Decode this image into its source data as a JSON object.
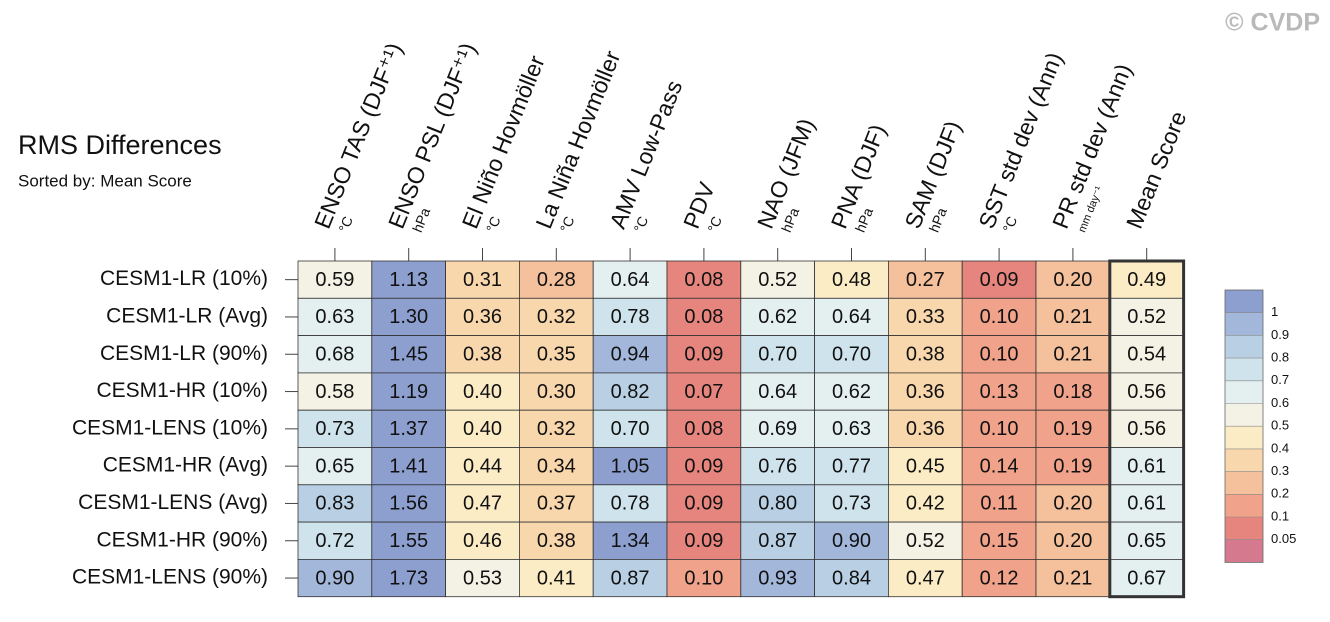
{
  "chart_data": {
    "type": "heatmap",
    "title": "RMS Differences",
    "subtitle": "Sorted by: Mean Score",
    "watermark": "© CVDP",
    "columns": [
      {
        "name": "ENSO TAS (DJF⁺¹)",
        "unit": "°C"
      },
      {
        "name": "ENSO PSL (DJF⁺¹)",
        "unit": "hPa"
      },
      {
        "name": "El Niño Hovmöller",
        "unit": "°C"
      },
      {
        "name": "La Niña Hovmöller",
        "unit": "°C"
      },
      {
        "name": "AMV Low-Pass",
        "unit": "°C"
      },
      {
        "name": "PDV",
        "unit": "°C"
      },
      {
        "name": "NAO (JFM)",
        "unit": "hPa"
      },
      {
        "name": "PNA (DJF)",
        "unit": "hPa"
      },
      {
        "name": "SAM (DJF)",
        "unit": "hPa"
      },
      {
        "name": "SST std dev (Ann)",
        "unit": "°C"
      },
      {
        "name": "PR std dev (Ann)",
        "unit": "mm day⁻¹"
      },
      {
        "name": "Mean Score"
      }
    ],
    "categories": [
      "CESM1-LR (10%)",
      "CESM1-LR (Avg)",
      "CESM1-LR (90%)",
      "CESM1-HR (10%)",
      "CESM1-LENS (10%)",
      "CESM1-HR (Avg)",
      "CESM1-LENS (Avg)",
      "CESM1-HR (90%)",
      "CESM1-LENS (90%)"
    ],
    "values": [
      [
        0.59,
        1.13,
        0.31,
        0.28,
        0.64,
        0.08,
        0.52,
        0.48,
        0.27,
        0.09,
        0.2,
        0.49
      ],
      [
        0.63,
        1.3,
        0.36,
        0.32,
        0.78,
        0.08,
        0.62,
        0.64,
        0.33,
        0.1,
        0.21,
        0.52
      ],
      [
        0.68,
        1.45,
        0.38,
        0.35,
        0.94,
        0.09,
        0.7,
        0.7,
        0.38,
        0.1,
        0.21,
        0.54
      ],
      [
        0.58,
        1.19,
        0.4,
        0.3,
        0.82,
        0.07,
        0.64,
        0.62,
        0.36,
        0.13,
        0.18,
        0.56
      ],
      [
        0.73,
        1.37,
        0.4,
        0.32,
        0.7,
        0.08,
        0.69,
        0.63,
        0.36,
        0.1,
        0.19,
        0.56
      ],
      [
        0.65,
        1.41,
        0.44,
        0.34,
        1.05,
        0.09,
        0.76,
        0.77,
        0.45,
        0.14,
        0.19,
        0.61
      ],
      [
        0.83,
        1.56,
        0.47,
        0.37,
        0.78,
        0.09,
        0.8,
        0.73,
        0.42,
        0.11,
        0.2,
        0.61
      ],
      [
        0.72,
        1.55,
        0.46,
        0.38,
        1.34,
        0.09,
        0.87,
        0.9,
        0.52,
        0.15,
        0.2,
        0.65
      ],
      [
        0.9,
        1.73,
        0.53,
        0.41,
        0.87,
        0.1,
        0.93,
        0.84,
        0.47,
        0.12,
        0.21,
        0.67
      ]
    ],
    "value_labels": [
      [
        "0.59",
        "1.13",
        "0.31",
        "0.28",
        "0.64",
        "0.08",
        "0.52",
        "0.48",
        "0.27",
        "0.09",
        "0.20",
        "0.49"
      ],
      [
        "0.63",
        "1.30",
        "0.36",
        "0.32",
        "0.78",
        "0.08",
        "0.62",
        "0.64",
        "0.33",
        "0.10",
        "0.21",
        "0.52"
      ],
      [
        "0.68",
        "1.45",
        "0.38",
        "0.35",
        "0.94",
        "0.09",
        "0.70",
        "0.70",
        "0.38",
        "0.10",
        "0.21",
        "0.54"
      ],
      [
        "0.58",
        "1.19",
        "0.40",
        "0.30",
        "0.82",
        "0.07",
        "0.64",
        "0.62",
        "0.36",
        "0.13",
        "0.18",
        "0.56"
      ],
      [
        "0.73",
        "1.37",
        "0.40",
        "0.32",
        "0.70",
        "0.08",
        "0.69",
        "0.63",
        "0.36",
        "0.10",
        "0.19",
        "0.56"
      ],
      [
        "0.65",
        "1.41",
        "0.44",
        "0.34",
        "1.05",
        "0.09",
        "0.76",
        "0.77",
        "0.45",
        "0.14",
        "0.19",
        "0.61"
      ],
      [
        "0.83",
        "1.56",
        "0.47",
        "0.37",
        "0.78",
        "0.09",
        "0.80",
        "0.73",
        "0.42",
        "0.11",
        "0.20",
        "0.61"
      ],
      [
        "0.72",
        "1.55",
        "0.46",
        "0.38",
        "1.34",
        "0.09",
        "0.87",
        "0.90",
        "0.52",
        "0.15",
        "0.20",
        "0.65"
      ],
      [
        "0.90",
        "1.73",
        "0.53",
        "0.41",
        "0.87",
        "0.10",
        "0.93",
        "0.84",
        "0.47",
        "0.12",
        "0.21",
        "0.67"
      ]
    ],
    "colorbar": {
      "ticks": [
        1,
        0.9,
        0.8,
        0.7,
        0.6,
        0.5,
        0.4,
        0.3,
        0.2,
        0.1,
        0.05
      ],
      "colors": [
        "#8d9fcf",
        "#a3b7da",
        "#b9d0e4",
        "#cfe3ec",
        "#e4eff0",
        "#f4f2e4",
        "#fbecc6",
        "#f9d7ad",
        "#f5c09c",
        "#f0a28a",
        "#e6857d",
        "#d57a8e"
      ]
    }
  }
}
